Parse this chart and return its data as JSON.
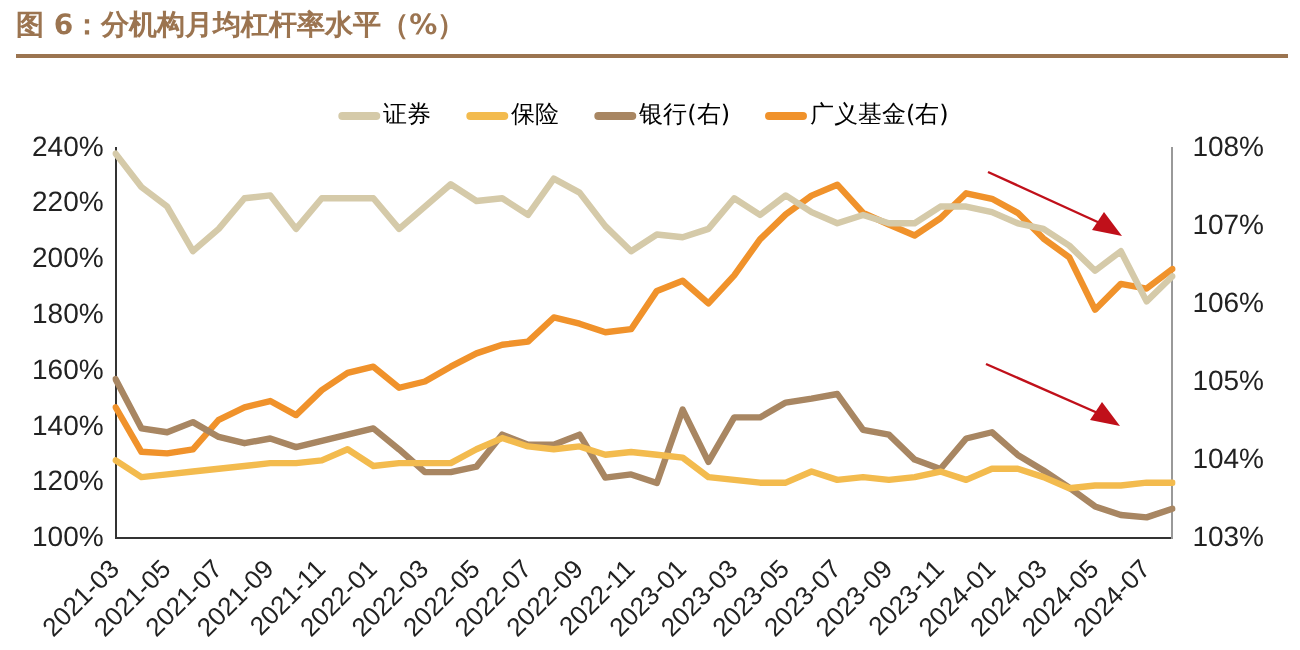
{
  "chart_data": {
    "type": "line",
    "title": "图 6：分机构月均杠杆率水平（%）",
    "categories": [
      "2021-03",
      null,
      "2021-05",
      null,
      "2021-07",
      null,
      "2021-09",
      null,
      "2021-11",
      null,
      "2022-01",
      null,
      "2022-03",
      null,
      "2022-05",
      null,
      "2022-07",
      null,
      "2022-09",
      null,
      "2022-11",
      null,
      "2023-01",
      null,
      "2023-03",
      null,
      "2023-05",
      null,
      "2023-07",
      null,
      "2023-09",
      null,
      "2023-11",
      null,
      "2024-01",
      null,
      "2024-03",
      null,
      "2024-05",
      null,
      "2024-07",
      null
    ],
    "series": [
      {
        "name": "证券",
        "color": "#d5caa9",
        "values": [
          238,
          226,
          219,
          203,
          211,
          222,
          223,
          211,
          222,
          222,
          222,
          211,
          219,
          227,
          221,
          222,
          216,
          229,
          224,
          212,
          203,
          209,
          208,
          211,
          222,
          216,
          223,
          217,
          213,
          216,
          213,
          213,
          219,
          219,
          217,
          213,
          211,
          205,
          196,
          203,
          185,
          194
        ]
      },
      {
        "name": "保险",
        "color": "#f3bb4e",
        "values": [
          128,
          122,
          123,
          124,
          125,
          126,
          127,
          127,
          128,
          132,
          126,
          127,
          127,
          127,
          132,
          136,
          133,
          132,
          133,
          130,
          131,
          130,
          129,
          122,
          121,
          120,
          120,
          124,
          121,
          122,
          121,
          122,
          124,
          121,
          125,
          125,
          122,
          118,
          119,
          119,
          120,
          120
        ]
      },
      {
        "name": "银行(右)",
        "axis": "y2",
        "color": "#a88662",
        "values": [
          105.04,
          104.41,
          104.36,
          104.49,
          104.3,
          104.22,
          104.28,
          104.17,
          104.25,
          104.33,
          104.41,
          104.14,
          103.85,
          103.85,
          103.92,
          104.33,
          104.2,
          104.2,
          104.33,
          103.78,
          103.82,
          103.71,
          104.65,
          103.98,
          104.55,
          104.55,
          104.74,
          104.79,
          104.85,
          104.39,
          104.33,
          104.01,
          103.89,
          104.28,
          104.36,
          104.07,
          103.87,
          103.65,
          103.41,
          103.3,
          103.27,
          103.38
        ]
      },
      {
        "name": "广义基金(右)",
        "axis": "y2",
        "color": "#f0922b",
        "values": [
          104.68,
          104.11,
          104.09,
          104.14,
          104.52,
          104.68,
          104.76,
          104.58,
          104.9,
          105.12,
          105.2,
          104.93,
          105.01,
          105.2,
          105.37,
          105.48,
          105.52,
          105.83,
          105.75,
          105.64,
          105.68,
          106.17,
          106.3,
          106.01,
          106.37,
          106.83,
          107.15,
          107.39,
          107.53,
          107.17,
          107.02,
          106.88,
          107.1,
          107.42,
          107.35,
          107.17,
          106.84,
          106.6,
          105.93,
          106.26,
          106.2,
          106.45
        ]
      }
    ],
    "ylim": [
      100,
      240
    ],
    "yticks": [
      {
        "value": 100,
        "label": "100%"
      },
      {
        "value": 120,
        "label": "120%"
      },
      {
        "value": 140,
        "label": "140%"
      },
      {
        "value": 160,
        "label": "160%"
      },
      {
        "value": 180,
        "label": "180%"
      },
      {
        "value": 200,
        "label": "200%"
      },
      {
        "value": 220,
        "label": "220%"
      },
      {
        "value": 240,
        "label": "240%"
      }
    ],
    "y2lim": [
      103,
      108
    ],
    "y2ticks": [
      {
        "value": 103,
        "label": "103%"
      },
      {
        "value": 104,
        "label": "104%"
      },
      {
        "value": 105,
        "label": "105%"
      },
      {
        "value": 106,
        "label": "106%"
      },
      {
        "value": 107,
        "label": "107%"
      },
      {
        "value": 108,
        "label": "108%"
      }
    ],
    "grid": false,
    "legend": "top",
    "marker": "none",
    "line_style": "solid"
  }
}
